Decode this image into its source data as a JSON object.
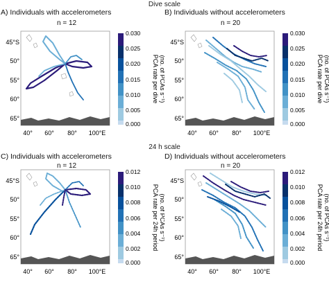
{
  "sections": [
    {
      "title": "Dive scale"
    },
    {
      "title": "24 h scale"
    }
  ],
  "lat_ticks": [
    "45°S",
    "50°",
    "55°",
    "60°",
    "65°"
  ],
  "lon_ticks": [
    "40°",
    "60°",
    "80°",
    "100°E"
  ],
  "colors": {
    "background": "#ffffff",
    "map_frame": "#9a9a9a",
    "coastline": "#9a9a9a",
    "antarctica": "#555555",
    "scale": [
      "#c6dbef",
      "#9ecae1",
      "#6baed6",
      "#4292c6",
      "#2171b5",
      "#08519c",
      "#08306b",
      "#2b1b7a"
    ]
  },
  "panels": [
    {
      "label": "A) Individuals with accelerometers",
      "n": "n = 12",
      "colorbar": {
        "title_line1": "PCA rate per dive",
        "title_line2": "(no. of PCAs s⁻¹)",
        "ticks": [
          "0.030",
          "0.025",
          "0.020",
          "0.015",
          "0.010",
          "0.005",
          "0.000"
        ]
      }
    },
    {
      "label": "B) Individuals without accelerometers",
      "n": "n = 20",
      "colorbar": {
        "title_line1": "PCA rate per dive",
        "title_line2": "(no. of PCAs s⁻¹)",
        "ticks": [
          "0.030",
          "0.025",
          "0.020",
          "0.015",
          "0.010",
          "0.005",
          "0.000"
        ]
      }
    },
    {
      "label": "C) Individuals with accelerometers",
      "n": "n = 12",
      "colorbar": {
        "title_line1": "PCA rate per 24h period",
        "title_line2": "(no. of PCAs s⁻¹)",
        "ticks": [
          "0.012",
          "0.010",
          "0.008",
          "0.006",
          "0.004",
          "0.002",
          "0.000"
        ]
      }
    },
    {
      "label": "D) Individuals without accelerometers",
      "n": "n = 20",
      "colorbar": {
        "title_line1": "PCA rate per 24h period",
        "title_line2": "(no. of PCAs s⁻¹)",
        "ticks": [
          "0.012",
          "0.010",
          "0.008",
          "0.006",
          "0.004",
          "0.002",
          "0.000"
        ]
      }
    }
  ]
}
